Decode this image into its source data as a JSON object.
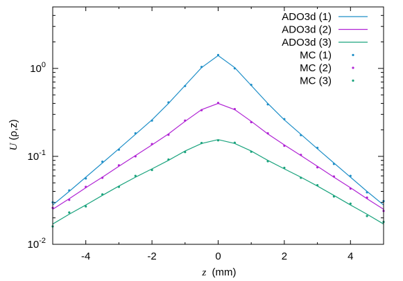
{
  "chart_data": {
    "type": "line",
    "xlabel_var": "z",
    "xlabel_unit": "(mm)",
    "ylabel_var": "U",
    "ylabel_args": "(ρ,z)",
    "xlim": [
      -5,
      5
    ],
    "ylim": [
      0.01,
      5
    ],
    "yscale": "log",
    "x_ticks": [
      -4,
      -2,
      0,
      2,
      4
    ],
    "x_tick_labels": [
      "-4",
      "-2",
      "0",
      "2",
      "4"
    ],
    "y_ticks": [
      0.01,
      0.1,
      1
    ],
    "y_tick_labels": [
      {
        "base": "10",
        "exp": "-2"
      },
      {
        "base": "10",
        "exp": "-1"
      },
      {
        "base": "10",
        "exp": "0"
      }
    ],
    "legend_position": "top-right",
    "colors": {
      "s1": "#1f8fc8",
      "s2": "#b023d4",
      "s3": "#1aa37d"
    },
    "x": [
      -5.0,
      -4.5,
      -4.0,
      -3.5,
      -3.0,
      -2.5,
      -2.0,
      -1.5,
      -1.0,
      -0.5,
      0.0,
      0.5,
      1.0,
      1.5,
      2.0,
      2.5,
      3.0,
      3.5,
      4.0,
      4.5,
      5.0
    ],
    "series": [
      {
        "name": "ADO3d (1)",
        "kind": "line",
        "color": "#1f8fc8",
        "values": [
          0.028,
          0.04,
          0.058,
          0.084,
          0.122,
          0.178,
          0.26,
          0.4,
          0.64,
          1.02,
          1.4,
          1.02,
          0.64,
          0.4,
          0.26,
          0.178,
          0.122,
          0.084,
          0.058,
          0.04,
          0.028
        ]
      },
      {
        "name": "ADO3d (2)",
        "kind": "line",
        "color": "#b023d4",
        "values": [
          0.025,
          0.033,
          0.044,
          0.058,
          0.077,
          0.102,
          0.135,
          0.18,
          0.25,
          0.34,
          0.4,
          0.34,
          0.25,
          0.18,
          0.135,
          0.102,
          0.077,
          0.058,
          0.044,
          0.033,
          0.025
        ]
      },
      {
        "name": "ADO3d (3)",
        "kind": "line",
        "color": "#1aa37d",
        "values": [
          0.017,
          0.022,
          0.028,
          0.036,
          0.046,
          0.058,
          0.072,
          0.09,
          0.115,
          0.14,
          0.155,
          0.14,
          0.115,
          0.09,
          0.072,
          0.058,
          0.046,
          0.036,
          0.028,
          0.022,
          0.017
        ]
      },
      {
        "name": "MC (1)",
        "kind": "points",
        "color": "#1f8fc8",
        "values": [
          0.03,
          0.041,
          0.056,
          0.087,
          0.119,
          0.183,
          0.255,
          0.41,
          0.63,
          1.04,
          1.42,
          1.0,
          0.65,
          0.39,
          0.265,
          0.174,
          0.125,
          0.082,
          0.06,
          0.039,
          0.031
        ]
      },
      {
        "name": "MC (2)",
        "kind": "points",
        "color": "#b023d4",
        "values": [
          0.026,
          0.032,
          0.045,
          0.057,
          0.079,
          0.1,
          0.138,
          0.176,
          0.255,
          0.335,
          0.405,
          0.345,
          0.245,
          0.183,
          0.132,
          0.104,
          0.075,
          0.059,
          0.043,
          0.034,
          0.024
        ]
      },
      {
        "name": "MC (3)",
        "kind": "points",
        "color": "#1aa37d",
        "values": [
          0.016,
          0.023,
          0.027,
          0.037,
          0.045,
          0.06,
          0.07,
          0.092,
          0.112,
          0.142,
          0.152,
          0.143,
          0.113,
          0.088,
          0.074,
          0.057,
          0.047,
          0.035,
          0.029,
          0.021,
          0.018
        ]
      }
    ]
  }
}
